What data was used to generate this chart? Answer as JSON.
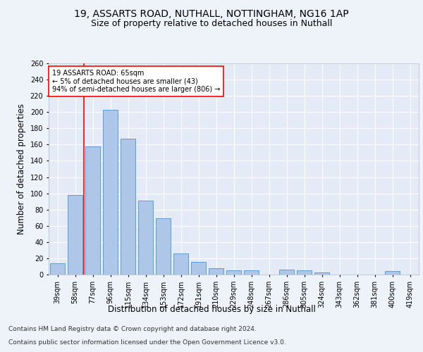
{
  "title_line1": "19, ASSARTS ROAD, NUTHALL, NOTTINGHAM, NG16 1AP",
  "title_line2": "Size of property relative to detached houses in Nuthall",
  "xlabel": "Distribution of detached houses by size in Nuthall",
  "ylabel": "Number of detached properties",
  "categories": [
    "39sqm",
    "58sqm",
    "77sqm",
    "96sqm",
    "115sqm",
    "134sqm",
    "153sqm",
    "172sqm",
    "191sqm",
    "210sqm",
    "229sqm",
    "248sqm",
    "267sqm",
    "286sqm",
    "305sqm",
    "324sqm",
    "343sqm",
    "362sqm",
    "381sqm",
    "400sqm",
    "419sqm"
  ],
  "values": [
    14,
    98,
    158,
    203,
    167,
    91,
    69,
    26,
    16,
    8,
    5,
    5,
    0,
    6,
    5,
    3,
    0,
    0,
    0,
    4,
    0
  ],
  "bar_color": "#aec6e8",
  "bar_edge_color": "#5a9fd4",
  "ylim": [
    0,
    260
  ],
  "yticks": [
    0,
    20,
    40,
    60,
    80,
    100,
    120,
    140,
    160,
    180,
    200,
    220,
    240,
    260
  ],
  "annotation_text_line1": "19 ASSARTS ROAD: 65sqm",
  "annotation_text_line2": "← 5% of detached houses are smaller (43)",
  "annotation_text_line3": "94% of semi-detached houses are larger (806) →",
  "red_line_x": 1.0,
  "footer_line1": "Contains HM Land Registry data © Crown copyright and database right 2024.",
  "footer_line2": "Contains public sector information licensed under the Open Government Licence v3.0.",
  "background_color": "#eef2f9",
  "plot_bg_color": "#e4eaf6",
  "grid_color": "#ffffff",
  "title_fontsize": 10,
  "subtitle_fontsize": 9,
  "axis_label_fontsize": 8.5,
  "tick_fontsize": 7,
  "footer_fontsize": 6.5
}
